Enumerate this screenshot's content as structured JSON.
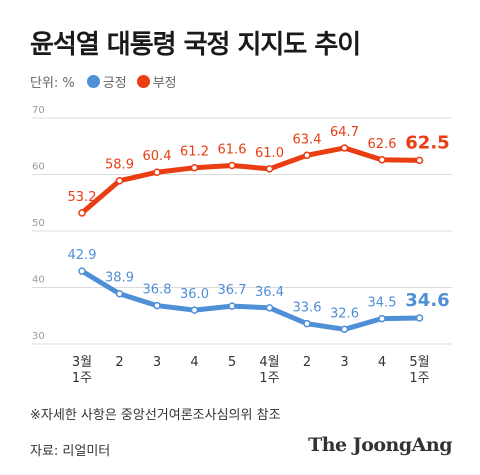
{
  "title": "윤석열 대통령 국정 지지도 추이",
  "legend": {
    "unit": "단위: %",
    "items": [
      {
        "label": "긍정",
        "color": "#4f8fd6"
      },
      {
        "label": "부정",
        "color": "#ea3d12"
      }
    ]
  },
  "footnote": "※자세한 사항은 중앙선거여론조사심의위 참조",
  "source": "자료: 리얼미터",
  "brand": "The JoongAng",
  "chart_data": {
    "type": "line",
    "title": "윤석열 대통령 국정 지지도 추이",
    "xlabel": "",
    "ylabel": "",
    "x": [
      [
        "3월",
        "1주"
      ],
      [
        "2"
      ],
      [
        "3"
      ],
      [
        "4"
      ],
      [
        "5"
      ],
      [
        "4월",
        "1주"
      ],
      [
        "2"
      ],
      [
        "3"
      ],
      [
        "4"
      ],
      [
        "5월",
        "1주"
      ]
    ],
    "yticks": [
      30,
      40,
      50,
      60,
      70
    ],
    "ylim": [
      30,
      70
    ],
    "grid": true,
    "series": [
      {
        "name": "부정",
        "color": "#ea3d12",
        "values": [
          53.2,
          58.9,
          60.4,
          61.2,
          61.6,
          61.0,
          63.4,
          64.7,
          62.6,
          62.5
        ]
      },
      {
        "name": "긍정",
        "color": "#4f8fd6",
        "values": [
          42.9,
          38.9,
          36.8,
          36.0,
          36.7,
          36.4,
          33.6,
          32.6,
          34.5,
          34.6
        ]
      }
    ]
  }
}
